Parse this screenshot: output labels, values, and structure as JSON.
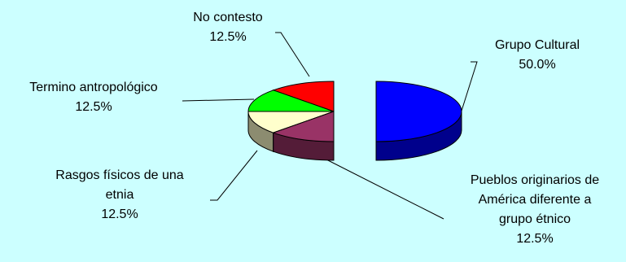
{
  "chart_data": {
    "type": "pie",
    "style": "3d-exploded",
    "slices": [
      {
        "label": "Grupo Cultural",
        "label_lines": [
          "Grupo Cultural"
        ],
        "value": 50.0,
        "display": "50.0%",
        "color": "#0000ff"
      },
      {
        "label": "Pueblos originarios de América diferente a grupo étnico",
        "label_lines": [
          "Pueblos originarios de",
          "América diferente a",
          "grupo étnico"
        ],
        "value": 12.5,
        "display": "12.5%",
        "color": "#993366"
      },
      {
        "label": "Rasgos físicos de una etnia",
        "label_lines": [
          "Rasgos físicos de una",
          "etnia"
        ],
        "value": 12.5,
        "display": "12.5%",
        "color": "#ffffcc"
      },
      {
        "label": "Termino antropológico",
        "label_lines": [
          "Termino antropológico"
        ],
        "value": 12.5,
        "display": "12.5%",
        "color": "#00ff00"
      },
      {
        "label": "No contesto",
        "label_lines": [
          "No contesto"
        ],
        "value": 12.5,
        "display": "12.5%",
        "color": "#ff0000"
      }
    ]
  }
}
